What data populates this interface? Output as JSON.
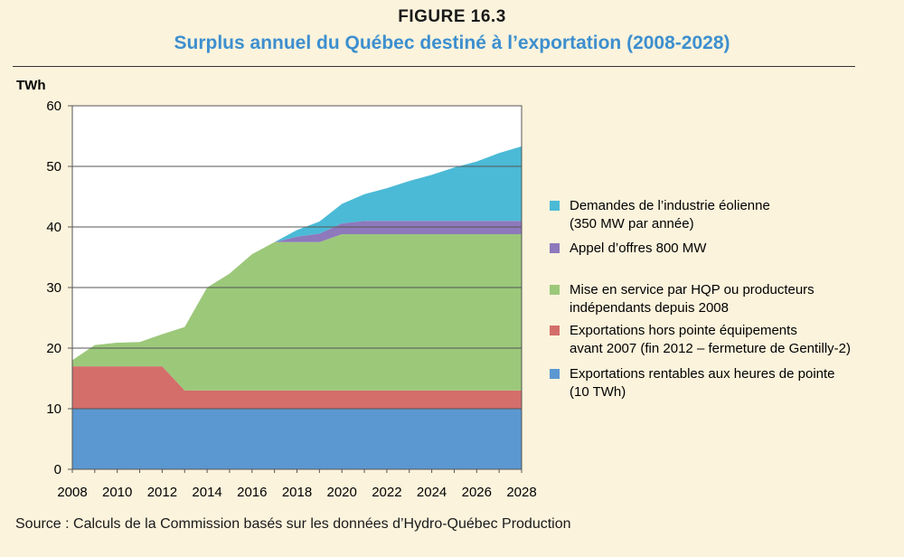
{
  "figure_label": "FIGURE 16.3",
  "source": "Source : Calculs de la Commission basés sur les données d’Hydro-Québec Production",
  "chart_data": {
    "type": "area",
    "stacked": true,
    "title": "Surplus annuel du Québec destiné à l’exportation (2008-2028)",
    "ylabel": "TWh",
    "xlabel": "",
    "ylim": [
      0,
      60
    ],
    "xlim": [
      2008,
      2028
    ],
    "yticks": [
      0,
      10,
      20,
      30,
      40,
      50,
      60
    ],
    "xticks": [
      2008,
      2010,
      2012,
      2014,
      2016,
      2018,
      2020,
      2022,
      2024,
      2026,
      2028
    ],
    "grid": "horizontal",
    "legend_position": "right",
    "x": [
      2008,
      2009,
      2010,
      2011,
      2012,
      2013,
      2014,
      2015,
      2016,
      2017,
      2018,
      2019,
      2020,
      2021,
      2022,
      2023,
      2024,
      2025,
      2026,
      2027,
      2028
    ],
    "series": [
      {
        "name": "Exportations rentables aux heures de pointe (10 TWh)",
        "legend_lines": [
          "Exportations rentables aux heures de pointe",
          "(10 TWh)"
        ],
        "color": "#5b97d1",
        "values": [
          10,
          10,
          10,
          10,
          10,
          10,
          10,
          10,
          10,
          10,
          10,
          10,
          10,
          10,
          10,
          10,
          10,
          10,
          10,
          10,
          10
        ]
      },
      {
        "name": "Exportations hors pointe équipements avant 2007 (fin 2012 – fermeture de Gentilly-2)",
        "legend_lines": [
          "Exportations hors pointe équipements",
          "avant 2007 (fin 2012 – fermeture de Gentilly-2)"
        ],
        "color": "#d36e6b",
        "values": [
          7,
          7,
          7,
          7,
          7,
          3,
          3,
          3,
          3,
          3,
          3,
          3,
          3,
          3,
          3,
          3,
          3,
          3,
          3,
          3,
          3
        ]
      },
      {
        "name": "Mise en service par HQP ou producteurs indépendants depuis 2008",
        "legend_lines": [
          "Mise en service par HQP ou producteurs",
          "indépendants depuis 2008"
        ],
        "color": "#9cc87a",
        "values": [
          1,
          3.5,
          3.9,
          4.0,
          5.3,
          10.5,
          17,
          19.3,
          22.5,
          24.5,
          24.5,
          24.5,
          25.8,
          25.8,
          25.8,
          25.8,
          25.8,
          25.8,
          25.8,
          25.8,
          25.8
        ]
      },
      {
        "name": "Appel d’offres 800 MW",
        "legend_lines": [
          "Appel d’offres 800 MW"
        ],
        "color": "#8d79bc",
        "values": [
          0,
          0,
          0,
          0,
          0,
          0,
          0,
          0,
          0,
          0,
          0.9,
          1.4,
          1.8,
          2.2,
          2.2,
          2.2,
          2.2,
          2.2,
          2.2,
          2.2,
          2.2
        ]
      },
      {
        "name": "Demandes de l’industrie éolienne (350 MW par année)",
        "legend_lines": [
          "Demandes de l’industrie éolienne",
          "(350 MW par année)"
        ],
        "color": "#4bbad6",
        "values": [
          0,
          0,
          0,
          0,
          0,
          0,
          0,
          0,
          0,
          0,
          1.1,
          2.0,
          3.2,
          4.4,
          5.4,
          6.6,
          7.6,
          8.8,
          9.8,
          11.2,
          12.3
        ]
      }
    ]
  }
}
